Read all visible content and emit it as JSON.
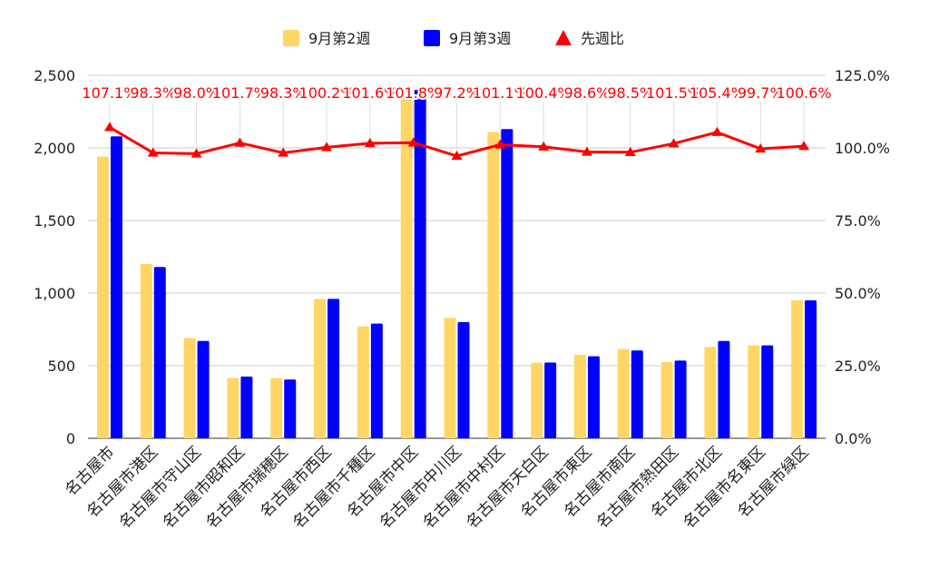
{
  "chart_data": {
    "type": "bar",
    "title": "",
    "xlabel": "",
    "ylabel": "",
    "categories": [
      "名古屋市",
      "名古屋市港区",
      "名古屋市守山区",
      "名古屋市昭和区",
      "名古屋市瑞穂区",
      "名古屋市西区",
      "名古屋市千種区",
      "名古屋市中区",
      "名古屋市中川区",
      "名古屋市中村区",
      "名古屋市天白区",
      "名古屋市東区",
      "名古屋市南区",
      "名古屋市熱田区",
      "名古屋市北区",
      "名古屋市名東区",
      "名古屋市緑区"
    ],
    "series": [
      {
        "name": "9月第2週",
        "type": "bar",
        "axis": "left",
        "color": "#FFD666",
        "values": [
          1940,
          1200,
          690,
          415,
          415,
          960,
          770,
          2360,
          830,
          2110,
          520,
          575,
          615,
          525,
          630,
          640,
          950
        ]
      },
      {
        "name": "9月第3週",
        "type": "bar",
        "axis": "left",
        "color": "#0000FF",
        "values": [
          2080,
          1180,
          670,
          425,
          405,
          960,
          790,
          2400,
          800,
          2130,
          522,
          565,
          605,
          535,
          670,
          640,
          950
        ]
      },
      {
        "name": "先週比",
        "type": "line",
        "axis": "right",
        "color": "#FF0000",
        "marker": "triangle",
        "values": [
          107.1,
          98.3,
          98.0,
          101.7,
          98.3,
          100.2,
          101.6,
          101.8,
          97.2,
          101.1,
          100.4,
          98.6,
          98.5,
          101.5,
          105.4,
          99.7,
          100.6
        ],
        "labels": [
          "107.1%",
          "98.3%",
          "98.0%",
          "101.7%",
          "98.3%",
          "100.2%",
          "101.6%",
          "101.8%",
          "97.2%",
          "101.1%",
          "100.4%",
          "98.6%",
          "98.5%",
          "101.5%",
          "105.4%",
          "99.7%",
          "100.6%"
        ]
      }
    ],
    "y_left": {
      "min": 0,
      "max": 2500,
      "ticks": [
        0,
        500,
        1000,
        1500,
        2000,
        2500
      ],
      "tick_labels": [
        "0",
        "500",
        "1,000",
        "1,500",
        "2,000",
        "2,500"
      ]
    },
    "y_right": {
      "min": 0,
      "max": 125,
      "ticks": [
        0,
        25,
        50,
        75,
        100,
        125
      ],
      "tick_labels": [
        "0.0%",
        "25.0%",
        "50.0%",
        "75.0%",
        "100.0%",
        "125.0%"
      ]
    },
    "grid": true,
    "legend_position": "top"
  }
}
